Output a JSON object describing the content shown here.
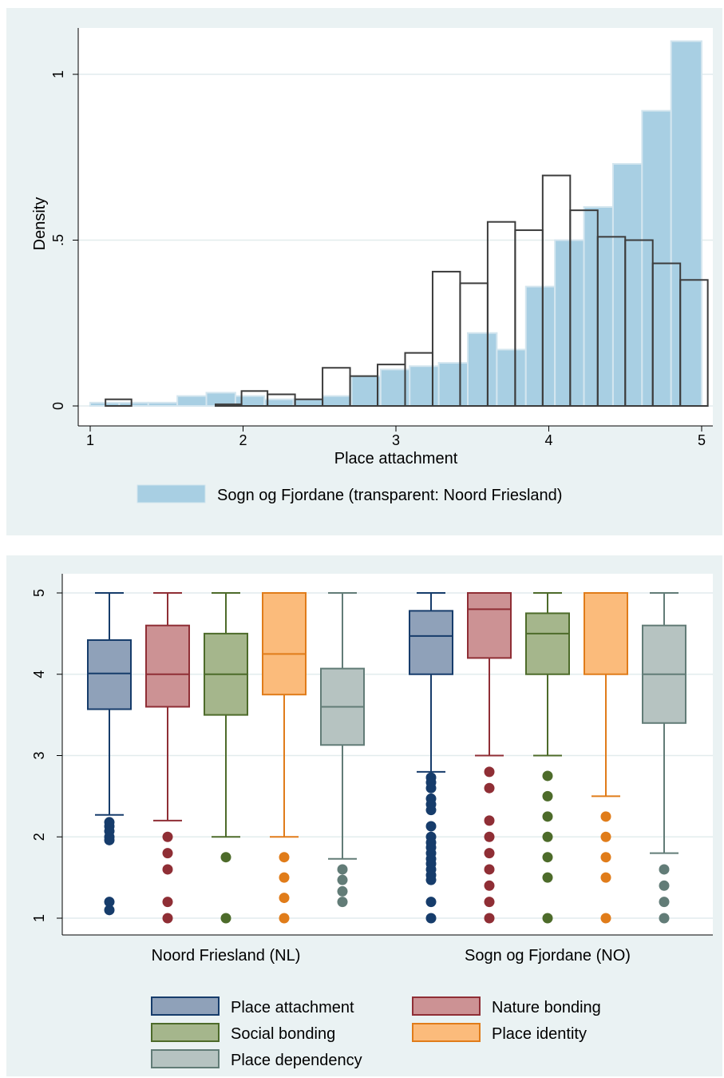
{
  "chart_data": [
    {
      "type": "bar",
      "subtype": "overlaid-histogram",
      "xlabel": "Place attachment",
      "ylabel": "Density",
      "xlim": [
        1,
        5
      ],
      "ylim": [
        0,
        1.1
      ],
      "x_ticks": [
        {
          "value": 1,
          "label": "1"
        },
        {
          "value": 2,
          "label": "2"
        },
        {
          "value": 3,
          "label": "3"
        },
        {
          "value": 4,
          "label": "4"
        },
        {
          "value": 5,
          "label": "5"
        }
      ],
      "y_ticks": [
        {
          "value": 0,
          "label": "0"
        },
        {
          "value": 0.5,
          "label": ".5"
        },
        {
          "value": 1,
          "label": "1"
        }
      ],
      "grid": true,
      "legend": {
        "placement": "bottom",
        "entries": [
          {
            "label": "Sogn og Fjordane (transparent: Noord Friesland)",
            "color": "#a8cfe3"
          }
        ]
      },
      "series": [
        {
          "style": "filled",
          "color": "#a8cfe3",
          "bins": [
            {
              "x0": 1.0,
              "x1": 1.19,
              "y": 0.01
            },
            {
              "x0": 1.19,
              "x1": 1.38,
              "y": 0.01
            },
            {
              "x0": 1.38,
              "x1": 1.57,
              "y": 0.01
            },
            {
              "x0": 1.57,
              "x1": 1.76,
              "y": 0.03
            },
            {
              "x0": 1.76,
              "x1": 1.95,
              "y": 0.04
            },
            {
              "x0": 1.95,
              "x1": 2.14,
              "y": 0.03
            },
            {
              "x0": 2.14,
              "x1": 2.33,
              "y": 0.02
            },
            {
              "x0": 2.33,
              "x1": 2.52,
              "y": 0.02
            },
            {
              "x0": 2.52,
              "x1": 2.71,
              "y": 0.03
            },
            {
              "x0": 2.71,
              "x1": 2.9,
              "y": 0.09
            },
            {
              "x0": 2.9,
              "x1": 3.09,
              "y": 0.11
            },
            {
              "x0": 3.09,
              "x1": 3.28,
              "y": 0.12
            },
            {
              "x0": 3.28,
              "x1": 3.47,
              "y": 0.13
            },
            {
              "x0": 3.47,
              "x1": 3.66,
              "y": 0.22
            },
            {
              "x0": 3.66,
              "x1": 3.85,
              "y": 0.17
            },
            {
              "x0": 3.85,
              "x1": 4.04,
              "y": 0.36
            },
            {
              "x0": 4.04,
              "x1": 4.23,
              "y": 0.5
            },
            {
              "x0": 4.23,
              "x1": 4.42,
              "y": 0.6
            },
            {
              "x0": 4.42,
              "x1": 4.61,
              "y": 0.73
            },
            {
              "x0": 4.61,
              "x1": 4.8,
              "y": 0.89
            },
            {
              "x0": 4.8,
              "x1": 5.0,
              "y": 1.1
            }
          ]
        },
        {
          "style": "outline",
          "color": "#3c3c3c",
          "bins": [
            {
              "x0": 1.1,
              "x1": 1.27,
              "y": 0.02
            },
            {
              "x0": 1.82,
              "x1": 1.99,
              "y": 0.005
            },
            {
              "x0": 1.99,
              "x1": 2.16,
              "y": 0.045
            },
            {
              "x0": 2.16,
              "x1": 2.34,
              "y": 0.035
            },
            {
              "x0": 2.34,
              "x1": 2.52,
              "y": 0.02
            },
            {
              "x0": 2.52,
              "x1": 2.7,
              "y": 0.115
            },
            {
              "x0": 2.7,
              "x1": 2.88,
              "y": 0.09
            },
            {
              "x0": 2.88,
              "x1": 3.06,
              "y": 0.125
            },
            {
              "x0": 3.06,
              "x1": 3.24,
              "y": 0.16
            },
            {
              "x0": 3.24,
              "x1": 3.42,
              "y": 0.405
            },
            {
              "x0": 3.42,
              "x1": 3.6,
              "y": 0.37
            },
            {
              "x0": 3.6,
              "x1": 3.78,
              "y": 0.555
            },
            {
              "x0": 3.78,
              "x1": 3.96,
              "y": 0.53
            },
            {
              "x0": 3.96,
              "x1": 4.14,
              "y": 0.695
            },
            {
              "x0": 4.14,
              "x1": 4.32,
              "y": 0.59
            },
            {
              "x0": 4.32,
              "x1": 4.5,
              "y": 0.51
            },
            {
              "x0": 4.5,
              "x1": 4.68,
              "y": 0.5
            },
            {
              "x0": 4.68,
              "x1": 4.86,
              "y": 0.43
            },
            {
              "x0": 4.86,
              "x1": 5.04,
              "y": 0.38
            }
          ]
        }
      ]
    },
    {
      "type": "box",
      "ylim": [
        1,
        5
      ],
      "y_ticks": [
        {
          "value": 1,
          "label": "1"
        },
        {
          "value": 2,
          "label": "2"
        },
        {
          "value": 3,
          "label": "3"
        },
        {
          "value": 4,
          "label": "4"
        },
        {
          "value": 5,
          "label": "5"
        }
      ],
      "grid": true,
      "legend": {
        "placement": "bottom",
        "entries": [
          {
            "label": "Place attachment",
            "fill": "#8fa1b9",
            "stroke": "#163c6b"
          },
          {
            "label": "Nature bonding",
            "fill": "#cc9294",
            "stroke": "#8f2e35"
          },
          {
            "label": "Social bonding",
            "fill": "#a5b68c",
            "stroke": "#4d6b2a"
          },
          {
            "label": "Place identity",
            "fill": "#fbbb7b",
            "stroke": "#e07c1a"
          },
          {
            "label": "Place dependency",
            "fill": "#b6c3c1",
            "stroke": "#627c77"
          }
        ]
      },
      "groups": [
        {
          "label": "Noord Friesland (NL)",
          "boxes": [
            {
              "series": "Place attachment",
              "whisker_low": 2.27,
              "q1": 3.57,
              "median": 4.01,
              "q3": 4.42,
              "whisker_high": 5.0,
              "outliers": [
                2.18,
                2.13,
                2.07,
                2.0,
                1.96,
                1.2,
                1.1
              ]
            },
            {
              "series": "Nature bonding",
              "whisker_low": 2.2,
              "q1": 3.6,
              "median": 4.0,
              "q3": 4.6,
              "whisker_high": 5.0,
              "outliers": [
                2.0,
                1.8,
                1.6,
                1.2,
                1.0
              ]
            },
            {
              "series": "Social bonding",
              "whisker_low": 2.0,
              "q1": 3.5,
              "median": 4.0,
              "q3": 4.5,
              "whisker_high": 5.0,
              "outliers": [
                1.75,
                1.0
              ]
            },
            {
              "series": "Place identity",
              "whisker_low": 2.0,
              "q1": 3.75,
              "median": 4.25,
              "q3": 5.0,
              "whisker_high": 5.0,
              "outliers": [
                1.75,
                1.5,
                1.25,
                1.0
              ]
            },
            {
              "series": "Place dependency",
              "whisker_low": 1.73,
              "q1": 3.13,
              "median": 3.6,
              "q3": 4.07,
              "whisker_high": 5.0,
              "outliers": [
                1.6,
                1.47,
                1.33,
                1.2
              ]
            }
          ]
        },
        {
          "label": "Sogn og Fjordane (NO)",
          "boxes": [
            {
              "series": "Place attachment",
              "whisker_low": 2.8,
              "q1": 4.0,
              "median": 4.47,
              "q3": 4.78,
              "whisker_high": 5.0,
              "outliers": [
                2.73,
                2.67,
                2.6,
                2.47,
                2.4,
                2.33,
                2.13,
                2.0,
                1.93,
                1.87,
                1.8,
                1.73,
                1.67,
                1.6,
                1.53,
                1.47,
                1.2,
                1.0
              ]
            },
            {
              "series": "Nature bonding",
              "whisker_low": 3.0,
              "q1": 4.2,
              "median": 4.8,
              "q3": 5.0,
              "whisker_high": 5.0,
              "outliers": [
                2.8,
                2.6,
                2.2,
                2.0,
                1.8,
                1.6,
                1.4,
                1.2,
                1.0
              ]
            },
            {
              "series": "Social bonding",
              "whisker_low": 3.0,
              "q1": 4.0,
              "median": 4.5,
              "q3": 4.75,
              "whisker_high": 5.0,
              "outliers": [
                2.75,
                2.5,
                2.25,
                2.0,
                1.75,
                1.5,
                1.0
              ]
            },
            {
              "series": "Place identity",
              "whisker_low": 2.5,
              "q1": 4.0,
              "median": 5.0,
              "q3": 5.0,
              "whisker_high": 5.0,
              "outliers": [
                2.25,
                2.0,
                1.75,
                1.5,
                1.0
              ]
            },
            {
              "series": "Place dependency",
              "whisker_low": 1.8,
              "q1": 3.4,
              "median": 4.0,
              "q3": 4.6,
              "whisker_high": 5.0,
              "outliers": [
                1.6,
                1.4,
                1.2,
                1.0
              ]
            }
          ]
        }
      ]
    }
  ]
}
